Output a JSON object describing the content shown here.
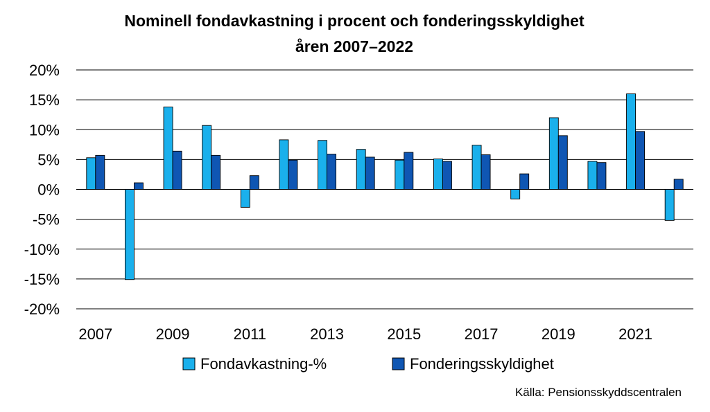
{
  "chart_data": {
    "type": "bar",
    "title_line1": "Nominell fondavkastning i procent och fonderingsskyldighet",
    "title_line2": "åren 2007–2022",
    "categories": [
      "2007",
      "2008",
      "2009",
      "2010",
      "2011",
      "2012",
      "2013",
      "2014",
      "2015",
      "2016",
      "2017",
      "2018",
      "2019",
      "2020",
      "2021",
      "2022"
    ],
    "x_tick_labels": [
      "2007",
      "",
      "2009",
      "",
      "2011",
      "",
      "2013",
      "",
      "2015",
      "",
      "2017",
      "",
      "2019",
      "",
      "2021",
      ""
    ],
    "series": [
      {
        "name": "Fondavkastning-%",
        "color": "#1ab0ec",
        "values": [
          5.3,
          -15.1,
          13.8,
          10.7,
          -3.0,
          8.3,
          8.2,
          6.7,
          4.9,
          5.1,
          7.4,
          -1.6,
          12.0,
          4.7,
          16.0,
          -5.2
        ]
      },
      {
        "name": "Fonderingsskyldighet",
        "color": "#0f56b3",
        "values": [
          5.7,
          1.1,
          6.4,
          5.7,
          2.3,
          4.9,
          5.9,
          5.4,
          6.2,
          4.7,
          5.8,
          2.6,
          9.0,
          4.5,
          9.7,
          1.7
        ]
      }
    ],
    "ylim": [
      -20,
      20
    ],
    "y_ticks": [
      20,
      15,
      10,
      5,
      0,
      -5,
      -10,
      -15,
      -20
    ],
    "y_tick_labels": [
      "20%",
      "15%",
      "10%",
      "5%",
      "0%",
      "-5%",
      "-10%",
      "-15%",
      "-20%"
    ],
    "grid": true,
    "legend_position": "bottom"
  },
  "source_note": "Källa: Pensionsskyddscentralen"
}
